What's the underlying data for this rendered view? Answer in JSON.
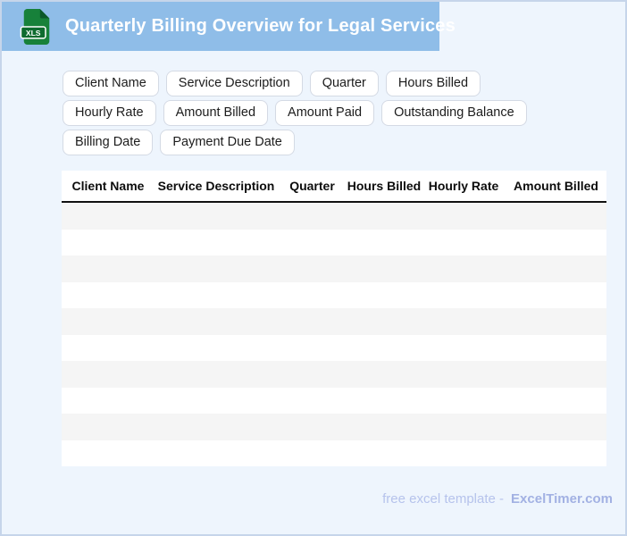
{
  "header": {
    "title": "Quarterly Billing Overview for Legal Services",
    "file_badge": "XLS"
  },
  "chips": {
    "items": [
      "Client Name",
      "Service Description",
      "Quarter",
      "Hours Billed",
      "Hourly Rate",
      "Amount Billed",
      "Amount Paid",
      "Outstanding Balance",
      "Billing Date",
      "Payment Due Date"
    ]
  },
  "table": {
    "columns": [
      "Client Name",
      "Service Description",
      "Quarter",
      "Hours Billed",
      "Hourly Rate",
      "Amount Billed"
    ],
    "row_count": 10,
    "rows": []
  },
  "footer": {
    "prefix": "free excel template -",
    "brand": "ExcelTimer.com"
  },
  "colors": {
    "header_bg": "#8fbde8",
    "page_bg": "#eef5fd",
    "border": "#c6d5ea",
    "stripe": "#f5f5f5",
    "icon_green": "#17813a",
    "icon_dark_green": "#0e6b2f",
    "footer_text": "#b6c3ec",
    "footer_brand": "#a2b1e3"
  }
}
